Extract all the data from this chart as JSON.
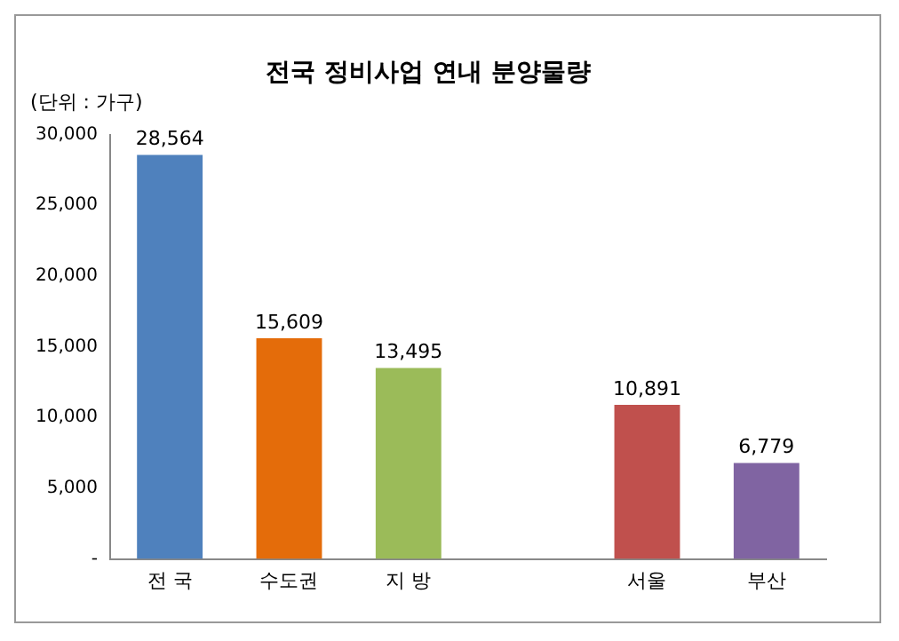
{
  "chart_data": {
    "type": "bar",
    "title": "전국 정비사업 연내 분양물량",
    "ylabel": "(단위 : 가구)",
    "categories": [
      "전 국",
      "수도권",
      "지 방",
      null,
      "서울",
      "부산"
    ],
    "values": [
      28564,
      15609,
      13495,
      null,
      10891,
      6779
    ],
    "colors": [
      "#4f81bd",
      "#e46c0a",
      "#9bbb59",
      null,
      "#c0504d",
      "#8064a2"
    ],
    "ylim": [
      0,
      30000
    ],
    "yticks": [
      {
        "value": 0,
        "label": "-"
      },
      {
        "value": 5000,
        "label": "5,000"
      },
      {
        "value": 10000,
        "label": "10,000"
      },
      {
        "value": 15000,
        "label": "15,000"
      },
      {
        "value": 20000,
        "label": "20,000"
      },
      {
        "value": 25000,
        "label": "25,000"
      },
      {
        "value": 30000,
        "label": "30,000"
      }
    ],
    "value_labels": [
      "28,564",
      "15,609",
      "13,495",
      null,
      "10,891",
      "6,779"
    ],
    "grid": false,
    "legend": false
  }
}
